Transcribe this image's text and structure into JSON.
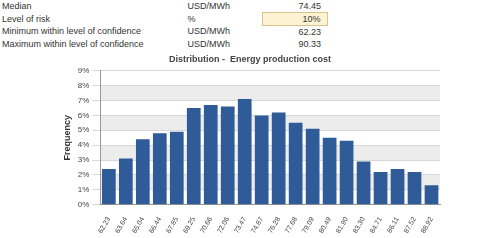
{
  "header_table": {
    "rows": [
      [
        "Median",
        "USD/MWh",
        "74.45"
      ],
      [
        "Level of risk",
        "%",
        "10%"
      ],
      [
        "Minimum within level of confidence",
        "USD/MWh",
        "62.23"
      ],
      [
        "Maximum within level of confidence",
        "USD/MWh",
        "90.33"
      ]
    ],
    "highlighted_row": 1
  },
  "chart_data": {
    "type": "bar",
    "title": "Distribution -  Energy production cost",
    "y_label": "Frequency",
    "categories": [
      "62.23",
      "63.64",
      "65.04",
      "66.44",
      "67.85",
      "69.25",
      "70.66",
      "72.06",
      "73.47",
      "74.87",
      "76.28",
      "77.68",
      "79.09",
      "80.49",
      "81.90",
      "83.30",
      "84.71",
      "86.11",
      "87.52",
      "88.92"
    ],
    "values": [
      2.4,
      3.1,
      4.4,
      4.8,
      4.9,
      6.5,
      6.7,
      6.6,
      7.1,
      6.0,
      6.2,
      5.5,
      5.1,
      4.5,
      4.3,
      2.9,
      2.2,
      2.4,
      2.2,
      1.3
    ],
    "color": "#2f5b98",
    "ylim": [
      0,
      9
    ],
    "yticks": [
      {
        "value": 0,
        "label": "0%"
      },
      {
        "value": 1,
        "label": "1%"
      },
      {
        "value": 2,
        "label": "2%"
      },
      {
        "value": 3,
        "label": "3%"
      },
      {
        "value": 4,
        "label": "4%"
      },
      {
        "value": 5,
        "label": "5%"
      },
      {
        "value": 6,
        "label": "6%"
      },
      {
        "value": 7,
        "label": "7%"
      },
      {
        "value": 8,
        "label": "8%"
      },
      {
        "value": 9,
        "label": "9%"
      }
    ],
    "grid": true
  }
}
